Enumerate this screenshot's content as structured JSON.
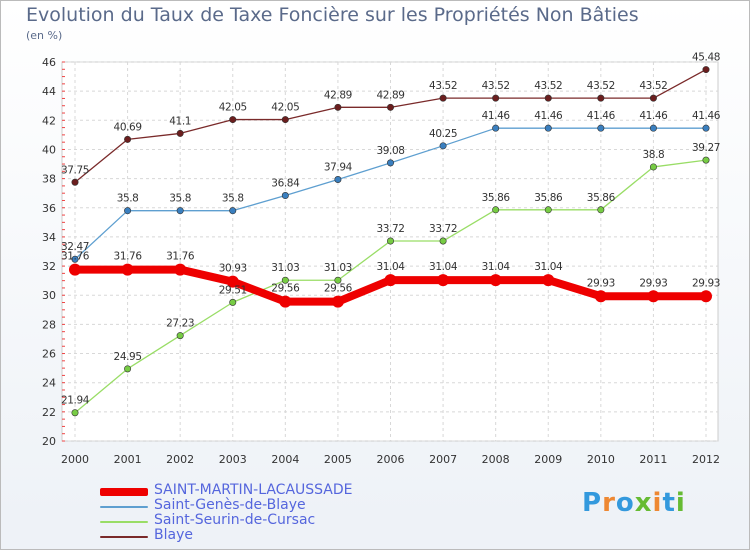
{
  "title": "Evolution du Taux de Taxe Foncière sur les Propriétés Non Bâties",
  "subtitle": "(en %)",
  "logo": {
    "text": "Proxiti",
    "letters": [
      "P",
      "r",
      "o",
      "x",
      "i",
      "t",
      "i"
    ],
    "colors": [
      "#3399dd",
      "#ee8833",
      "#3399dd",
      "#66bb33",
      "#ee8833",
      "#3399dd",
      "#66bb33"
    ]
  },
  "chart_data": {
    "type": "line",
    "categories": [
      "2000",
      "2001",
      "2002",
      "2003",
      "2004",
      "2005",
      "2006",
      "2007",
      "2008",
      "2009",
      "2010",
      "2011",
      "2012"
    ],
    "ylim": [
      20,
      46
    ],
    "yticks": [
      20,
      22,
      24,
      26,
      28,
      30,
      32,
      34,
      36,
      38,
      40,
      42,
      44,
      46
    ],
    "grid": true,
    "legend_placement": "bottom-left",
    "series": [
      {
        "name": "Blaye",
        "color": "#7a2a2a",
        "width": 1.3,
        "marker": "#6b1e1e",
        "values": [
          37.75,
          40.69,
          41.1,
          42.05,
          42.05,
          42.89,
          42.89,
          43.52,
          43.52,
          43.52,
          43.52,
          43.52,
          45.48
        ],
        "labels": [
          "37.75",
          "40.69",
          "41.1",
          "42.05",
          "42.05",
          "42.89",
          "42.89",
          "43.52",
          "43.52",
          "43.52",
          "43.52",
          "43.52",
          "45.48"
        ]
      },
      {
        "name": "Saint-Genès-de-Blaye",
        "color": "#5e9fd0",
        "width": 1.3,
        "marker": "#3a7fbf",
        "values": [
          32.47,
          35.8,
          35.8,
          35.8,
          36.84,
          37.94,
          39.08,
          40.25,
          41.46,
          41.46,
          41.46,
          41.46,
          41.46
        ],
        "labels": [
          "32.47",
          "35.8",
          "35.8",
          "35.8",
          "36.84",
          "37.94",
          "39.08",
          "40.25",
          "41.46",
          "41.46",
          "41.46",
          "41.46",
          "41.46"
        ]
      },
      {
        "name": "Saint-Seurin-de-Cursac",
        "color": "#99dd66",
        "width": 1.3,
        "marker": "#77cc44",
        "values": [
          21.94,
          24.95,
          27.23,
          29.51,
          31.03,
          31.03,
          33.72,
          33.72,
          35.86,
          35.86,
          35.86,
          38.8,
          39.27
        ],
        "labels": [
          "21.94",
          "24.95",
          "27.23",
          "29.51",
          "31.03",
          "31.03",
          "33.72",
          "33.72",
          "35.86",
          "35.86",
          "35.86",
          "38.8",
          "39.27"
        ]
      },
      {
        "name": "SAINT-MARTIN-LACAUSSADE",
        "color": "#ee0000",
        "width": 8,
        "marker": "#ee0000",
        "values": [
          31.76,
          31.76,
          31.76,
          30.93,
          29.56,
          29.56,
          31.04,
          31.04,
          31.04,
          31.04,
          29.93,
          29.93,
          29.93
        ],
        "labels": [
          "31.76",
          "31.76",
          "31.76",
          "30.93",
          "29.56",
          "29.56",
          "31.04",
          "31.04",
          "31.04",
          "31.04",
          "29.93",
          "29.93",
          "29.93"
        ]
      }
    ],
    "legend": [
      {
        "label": "SAINT-MARTIN-LACAUSSADE",
        "color": "#ee0000",
        "thickness": 8
      },
      {
        "label": "Saint-Genès-de-Blaye",
        "color": "#5e9fd0",
        "thickness": 2
      },
      {
        "label": "Saint-Seurin-de-Cursac",
        "color": "#99dd66",
        "thickness": 2
      },
      {
        "label": "Blaye",
        "color": "#7a2a2a",
        "thickness": 2
      }
    ]
  }
}
